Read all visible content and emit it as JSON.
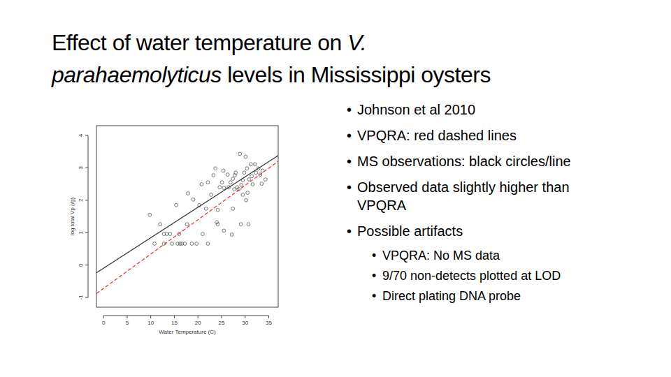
{
  "slide": {
    "title": [
      [
        {
          "text": "Effect of water temperature on "
        },
        {
          "text": "V.",
          "italic": true
        }
      ],
      [
        {
          "text": "parahaemolyticus",
          "italic": true
        },
        {
          "text": " levels in Mississippi oysters"
        }
      ]
    ],
    "bullets": [
      {
        "text": "Johnson et al 2010"
      },
      {
        "text": "VPQRA: red dashed lines"
      },
      {
        "text": "MS observations: black circles/line"
      },
      {
        "text": "Observed data slightly higher than VPQRA"
      },
      {
        "text": "Possible artifacts",
        "sub": [
          {
            "text": "VPQRA: No MS data"
          },
          {
            "text": "9/70 non-detects plotted at LOD"
          },
          {
            "text": "Direct plating DNA probe"
          }
        ]
      }
    ]
  },
  "chart_data": {
    "type": "scatter",
    "x_label": "Water Temperature (C)",
    "y_label": "log total Vp (/g)",
    "xlim": [
      -1.5,
      37
    ],
    "ylim": [
      -1.3,
      4.3
    ],
    "xticks": [
      0,
      5,
      10,
      15,
      20,
      25,
      30,
      35
    ],
    "yticks": [
      -1,
      0,
      1,
      2,
      3,
      4
    ],
    "grid": false,
    "series": [
      {
        "type": "scatter",
        "marker": "circle",
        "color": "#555555",
        "x": [
          9.8,
          10.8,
          12.0,
          12.8,
          13.4,
          14.1,
          12.8,
          14.5,
          15.4,
          15.7,
          16.2,
          16.6,
          17.2,
          16.0,
          17.9,
          17.7,
          18.7,
          19.7,
          19.0,
          20.3,
          20.8,
          21.0,
          21.7,
          22.1,
          22.1,
          22.8,
          23.3,
          23.7,
          24.2,
          24.2,
          24.6,
          25.1,
          25.4,
          26.3,
          25.5,
          26.5,
          26.9,
          27.4,
          27.8,
          28.3,
          28.0,
          27.7,
          28.9,
          28.6,
          29.2,
          29.5,
          29.8,
          30.1,
          30.4,
          31.2,
          31.6,
          32.1,
          32.3,
          32.8,
          33.2,
          33.7,
          34.3,
          33.5,
          31.4,
          30.8,
          30.5,
          30.2,
          29.5,
          29.1,
          30.7,
          27.2,
          27.4,
          25.5,
          24.0
        ],
        "values": [
          1.55,
          0.66,
          1.26,
          0.96,
          0.96,
          0.96,
          0.66,
          0.66,
          1.85,
          0.66,
          0.66,
          0.66,
          0.66,
          0.96,
          2.21,
          1.26,
          0.66,
          0.66,
          2.02,
          1.85,
          2.49,
          0.96,
          1.74,
          2.55,
          0.66,
          2.17,
          2.77,
          2.98,
          1.7,
          1.26,
          2.4,
          2.55,
          2.91,
          2.79,
          2.38,
          2.4,
          2.55,
          2.66,
          2.77,
          2.4,
          2.85,
          2.34,
          3.43,
          2.34,
          2.47,
          2.62,
          2.85,
          3.34,
          2.98,
          3.11,
          2.49,
          3.11,
          2.85,
          2.98,
          2.79,
          2.91,
          2.64,
          2.51,
          2.74,
          2.64,
          2.23,
          2.0,
          2.17,
          1.26,
          1.26,
          0.94,
          1.74,
          1.06,
          1.32
        ]
      },
      {
        "type": "line",
        "color": "#333333",
        "line_style": "solid",
        "x": [
          -1.5,
          37
        ],
        "values": [
          -0.24,
          3.38
        ]
      },
      {
        "type": "line",
        "color": "#e0302a",
        "line_style": "dashed",
        "x": [
          -1.5,
          37
        ],
        "values": [
          -0.88,
          3.2
        ]
      }
    ]
  }
}
